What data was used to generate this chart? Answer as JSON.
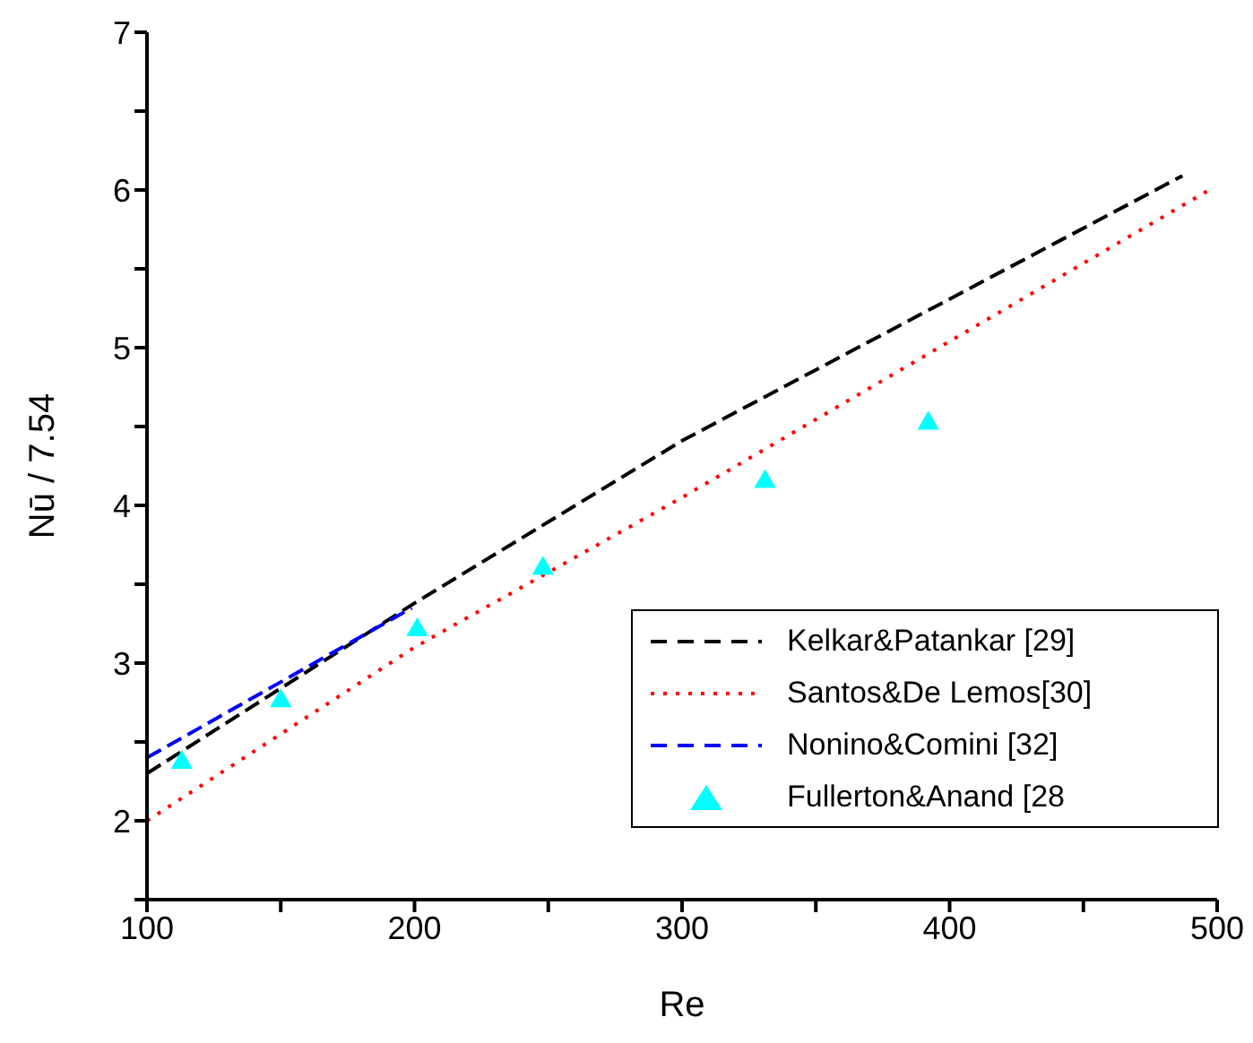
{
  "chart_data": {
    "type": "line",
    "xlabel": "Re",
    "ylabel": "Nū / 7.54",
    "xlim": [
      100,
      500
    ],
    "ylim": [
      1.5,
      7
    ],
    "xticks": [
      100,
      {
        "value": 150,
        "label": null
      },
      200,
      {
        "value": 250,
        "label": null
      },
      300,
      {
        "value": 350,
        "label": null
      },
      400,
      {
        "value": 450,
        "label": null
      },
      500
    ],
    "yticks": [
      {
        "value": 1.5,
        "label": null
      },
      2,
      {
        "value": 2.5,
        "label": null
      },
      3,
      {
        "value": 3.5,
        "label": null
      },
      4,
      {
        "value": 4.5,
        "label": null
      },
      5,
      {
        "value": 5.5,
        "label": null
      },
      6,
      {
        "value": 6.5,
        "label": null
      },
      7
    ],
    "legend": "bottom right",
    "series": [
      {
        "name": "Kelkar&Patankar [29]",
        "color": "#000000",
        "line_style": "dashed",
        "marker": "none",
        "x": [
          100,
          200,
          300,
          487
        ],
        "values": [
          2.3,
          3.38,
          4.41,
          6.09
        ]
      },
      {
        "name": "Santos&De Lemos[30]",
        "color": "#ff0000",
        "line_style": "dotted",
        "marker": "none",
        "x": [
          100,
          200,
          300,
          497
        ],
        "values": [
          2.0,
          3.1,
          4.05,
          6.0
        ]
      },
      {
        "name": "Nonino&Comini [32]",
        "color": "#0000ff",
        "line_style": "dashed",
        "marker": "none",
        "x": [
          100,
          150,
          199
        ],
        "values": [
          2.4,
          2.88,
          3.35
        ]
      },
      {
        "name": "Fullerton&Anand [28",
        "type": "scatter",
        "color": "#00ffff",
        "marker": "triangle",
        "x": [
          113,
          150,
          201,
          248,
          331,
          392
        ],
        "values": [
          2.37,
          2.76,
          3.21,
          3.6,
          4.15,
          4.52
        ]
      }
    ]
  }
}
